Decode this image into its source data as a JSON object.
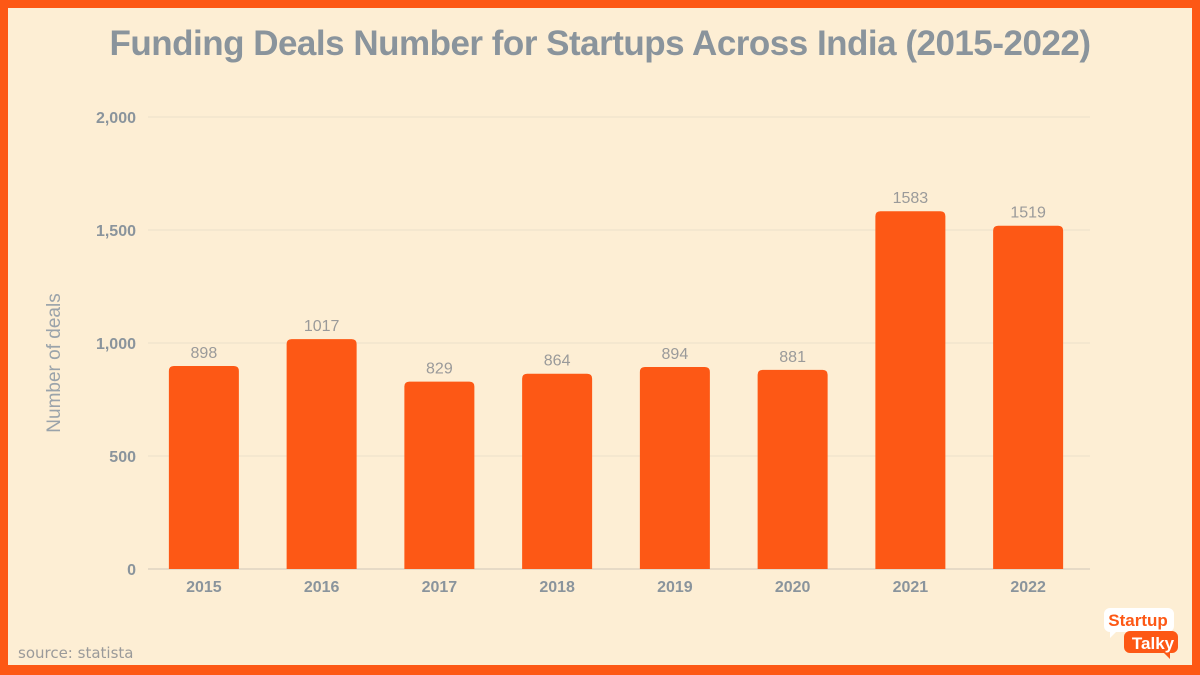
{
  "chart_data": {
    "type": "bar",
    "title": "Funding Deals Number for Startups Across India (2015-2022)",
    "xlabel": "",
    "ylabel": "Number of deals",
    "categories": [
      "2015",
      "2016",
      "2017",
      "2018",
      "2019",
      "2020",
      "2021",
      "2022"
    ],
    "values": [
      898,
      1017,
      829,
      864,
      894,
      881,
      1583,
      1519
    ],
    "data_labels": [
      "898",
      "1017",
      "829",
      "864",
      "894",
      "881",
      "1583",
      "1519"
    ],
    "ylim": [
      0,
      2000
    ],
    "yticks": [
      0,
      500,
      1000,
      1500,
      2000
    ],
    "ytick_labels": [
      "0",
      "500",
      "1,000",
      "1,500",
      "2,000"
    ],
    "grid": true,
    "legend": "none",
    "bar_color": "#fd5815"
  },
  "source": "source: statista",
  "logo": {
    "line1": "Startup",
    "line2": "Talky"
  },
  "colors": {
    "background": "#fdeed4",
    "border": "#fd5815",
    "text": "#8a949c"
  }
}
